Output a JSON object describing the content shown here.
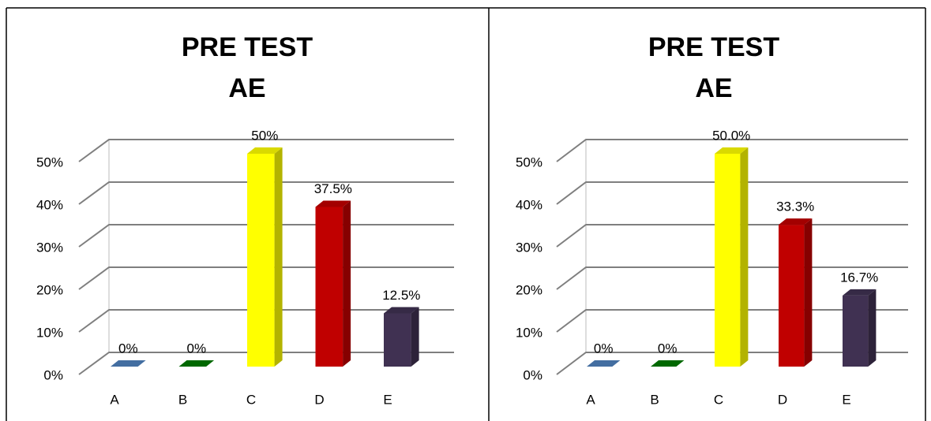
{
  "chart_data": [
    {
      "type": "bar3d",
      "title": "PRE TEST",
      "subtitle": "AE",
      "categories": [
        "A",
        "B",
        "C",
        "D",
        "E"
      ],
      "values": [
        0,
        0,
        50,
        37.5,
        12.5
      ],
      "value_labels": [
        "0%",
        "0%",
        "50%",
        "37.5%",
        "12.5%"
      ],
      "colors": [
        "#4f81bd",
        "#007a00",
        "#ffff00",
        "#c00000",
        "#403152"
      ],
      "ylim": [
        0,
        50
      ],
      "yticks": [
        {
          "value": 0,
          "label": "0%"
        },
        {
          "value": 10,
          "label": "10%"
        },
        {
          "value": 20,
          "label": "20%"
        },
        {
          "value": 30,
          "label": "30%"
        },
        {
          "value": 40,
          "label": "40%"
        },
        {
          "value": 50,
          "label": "50%"
        }
      ],
      "grid": true
    },
    {
      "type": "bar3d",
      "title": "PRE TEST",
      "subtitle": "AE",
      "categories": [
        "A",
        "B",
        "C",
        "D",
        "E"
      ],
      "values": [
        0,
        0,
        50.0,
        33.3,
        16.7
      ],
      "value_labels": [
        "0%",
        "0%",
        "50.0%",
        "33.3%",
        "16.7%"
      ],
      "colors": [
        "#4f81bd",
        "#007a00",
        "#ffff00",
        "#c00000",
        "#403152"
      ],
      "ylim": [
        0,
        50
      ],
      "yticks": [
        {
          "value": 0,
          "label": "0%"
        },
        {
          "value": 10,
          "label": "10%"
        },
        {
          "value": 20,
          "label": "20%"
        },
        {
          "value": 30,
          "label": "30%"
        },
        {
          "value": 40,
          "label": "40%"
        },
        {
          "value": 50,
          "label": "50%"
        }
      ],
      "grid": true
    }
  ]
}
